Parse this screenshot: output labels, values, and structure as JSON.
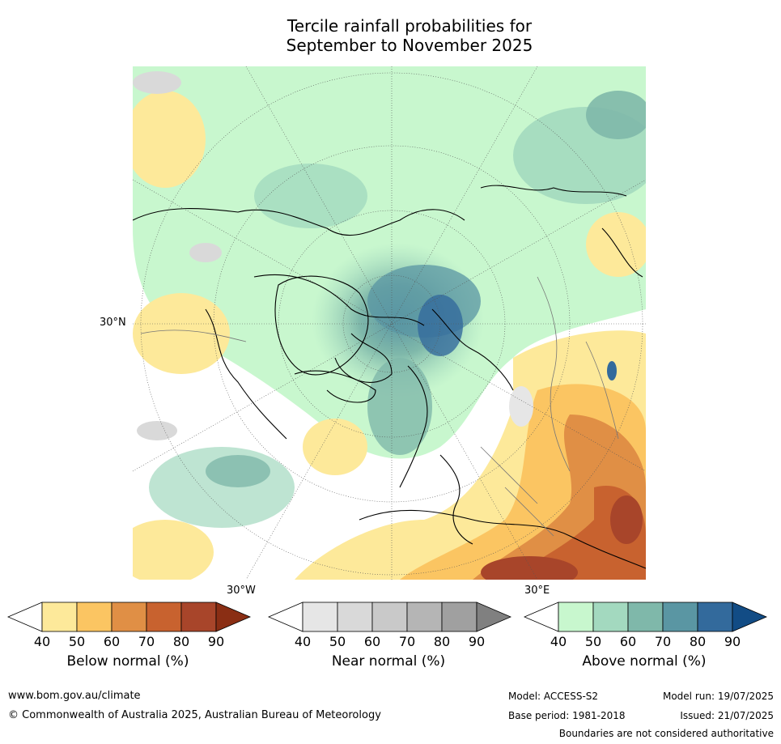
{
  "title_line1": "Tercile rainfall probabilities for",
  "title_line2": "September to November 2025",
  "map_labels": {
    "lat30": "30°N",
    "lon30w": "30°W",
    "lon30e": "30°E"
  },
  "colorbars": [
    {
      "id": "below",
      "title": "Below normal (%)",
      "ticks": [
        "40",
        "50",
        "60",
        "70",
        "80",
        "90"
      ],
      "colors": [
        "#ffffff",
        "#fde99a",
        "#fbc562",
        "#e08f45",
        "#c8622f",
        "#a8452a",
        "#8a2e14"
      ]
    },
    {
      "id": "near",
      "title": "Near normal (%)",
      "ticks": [
        "40",
        "50",
        "60",
        "70",
        "80",
        "90"
      ],
      "colors": [
        "#ffffff",
        "#e6e6e6",
        "#d9d9d9",
        "#c9c9c9",
        "#b5b5b5",
        "#a0a0a0",
        "#808080"
      ]
    },
    {
      "id": "above",
      "title": "Above normal (%)",
      "ticks": [
        "40",
        "50",
        "60",
        "70",
        "80",
        "90"
      ],
      "colors": [
        "#ffffff",
        "#c8f7ce",
        "#a3d9bf",
        "#7fb8aa",
        "#5a96a3",
        "#336a9c",
        "#124c85"
      ]
    }
  ],
  "footer": {
    "website": "www.bom.gov.au/climate",
    "copyright": "© Commonwealth of Australia 2025, Australian Bureau of Meteorology",
    "model": "Model: ACCESS-S2",
    "base_period": "Base period: 1981-2018",
    "model_run": "Model run: 19/07/2025",
    "issued": "Issued: 21/07/2025",
    "disclaimer": "Boundaries are not considered authoritative"
  }
}
